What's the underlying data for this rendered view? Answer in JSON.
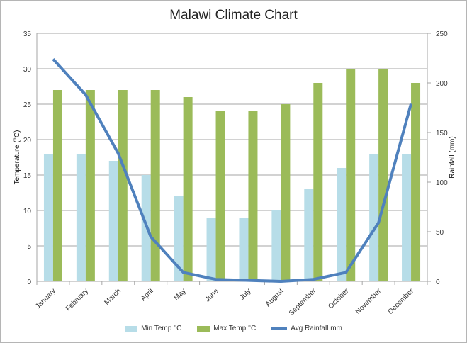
{
  "chart_data": {
    "type": "bar+line",
    "title": "Malawi Climate Chart",
    "categories": [
      "January",
      "February",
      "March",
      "April",
      "May",
      "June",
      "July",
      "August",
      "September",
      "October",
      "November",
      "December"
    ],
    "series": [
      {
        "name": "Min Temp °C",
        "type": "bar",
        "axis": "left",
        "color": "#b7dde8",
        "values": [
          18,
          18,
          17,
          15,
          12,
          9,
          9,
          10,
          13,
          16,
          18,
          18
        ]
      },
      {
        "name": "Max Temp °C",
        "type": "bar",
        "axis": "left",
        "color": "#9bbb59",
        "values": [
          27,
          27,
          27,
          27,
          26,
          24,
          24,
          25,
          28,
          30,
          30,
          28
        ]
      },
      {
        "name": "Avg Rainfall mm",
        "type": "line",
        "axis": "right",
        "color": "#4f81bd",
        "values": [
          224,
          188,
          129,
          45,
          9,
          2,
          1,
          0,
          2,
          9,
          59,
          179
        ]
      }
    ],
    "ylabel": "Temperature  (°C)",
    "y2label": "Rainfall (mm)",
    "ylim": [
      0,
      35
    ],
    "yticks": [
      0,
      5,
      10,
      15,
      20,
      25,
      30,
      35
    ],
    "y2lim": [
      0,
      250
    ],
    "y2ticks": [
      0,
      50,
      100,
      150,
      200,
      250
    ],
    "grid": true,
    "legend": "bottom"
  }
}
